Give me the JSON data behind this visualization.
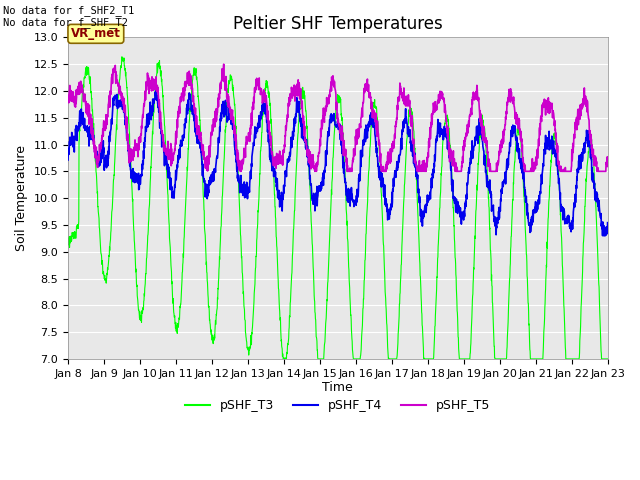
{
  "title": "Peltier SHF Temperatures",
  "xlabel": "Time",
  "ylabel": "Soil Temperature",
  "text_top_left": "No data for f_SHF2_T1\nNo data for f_SHF_T2",
  "vr_met_label": "VR_met",
  "ylim": [
    7.0,
    13.0
  ],
  "yticks": [
    7.0,
    7.5,
    8.0,
    8.5,
    9.0,
    9.5,
    10.0,
    10.5,
    11.0,
    11.5,
    12.0,
    12.5,
    13.0
  ],
  "xtick_labels": [
    "Jan 8",
    "Jan 9",
    "Jan 10",
    "Jan 11",
    "Jan 12",
    "Jan 13",
    "Jan 14",
    "Jan 15",
    "Jan 16",
    "Jan 17",
    "Jan 18",
    "Jan 19",
    "Jan 20",
    "Jan 21",
    "Jan 22",
    "Jan 23"
  ],
  "legend": [
    "pSHF_T3",
    "pSHF_T4",
    "pSHF_T5"
  ],
  "colors": {
    "T3": "#00FF00",
    "T4": "#0000EE",
    "T5": "#CC00CC"
  },
  "background_color": "#E8E8E8",
  "title_fontsize": 12,
  "axis_fontsize": 9,
  "tick_fontsize": 8,
  "legend_fontsize": 9
}
